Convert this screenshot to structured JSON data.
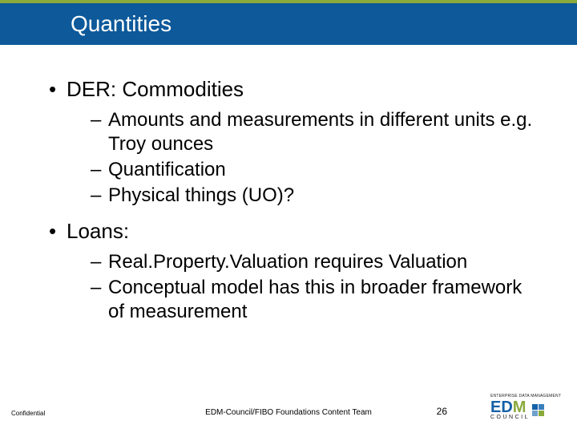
{
  "colors": {
    "accent": "#8aaa3b",
    "title_bar": "#0d599a",
    "title_text": "#ffffff",
    "body_text": "#000000",
    "logo_blue": "#1560a8",
    "logo_green": "#8aaa3b",
    "logo_box1": "#1560a8",
    "logo_box2": "#3a7fbc",
    "logo_box3": "#6fa0cc",
    "logo_box4": "#8aaa3b"
  },
  "title": "Quantities",
  "bullets": {
    "b1": "DER: Commodities",
    "b1_1": "Amounts and measurements in different units e.g. Troy ounces",
    "b1_2": "Quantification",
    "b1_3": "Physical things (UO)?",
    "b2": "Loans:",
    "b2_1": "Real.Property.Valuation requires Valuation",
    "b2_2": "Conceptual model has this in broader framework of measurement"
  },
  "footer": {
    "confidential": "Confidential",
    "center": "EDM-Council/FIBO Foundations Content Team",
    "page": "26"
  },
  "logo": {
    "tagline": "ENTERPRISE DATA MANAGEMENT",
    "name_e": "E",
    "name_d": "D",
    "name_m": "M",
    "council": "COUNCIL"
  }
}
